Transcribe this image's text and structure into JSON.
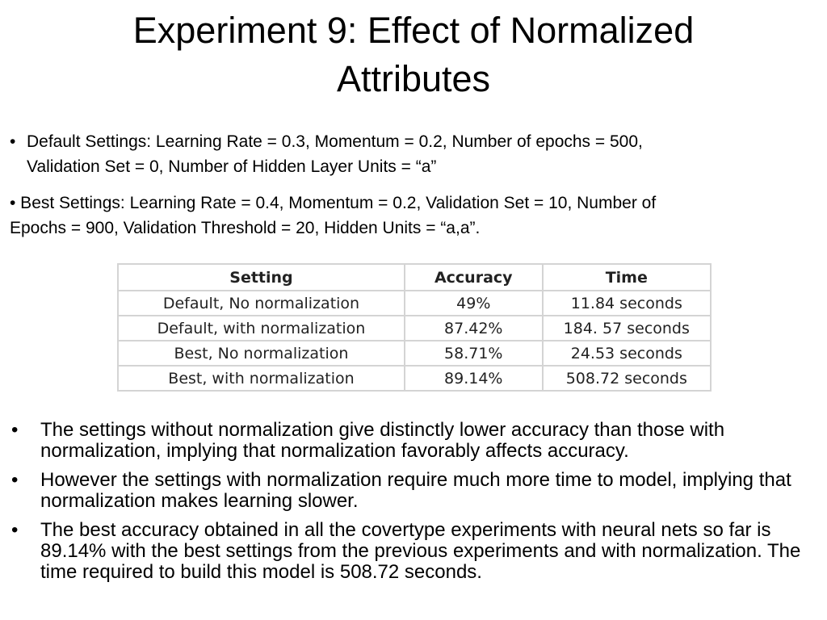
{
  "slide": {
    "title_line1": "Experiment 9: Effect of Normalized",
    "title_line2": "Attributes",
    "bullet_glyph": "•",
    "default_settings": {
      "line1": "Default Settings: Learning Rate = 0.3, Momentum = 0.2, Number of epochs = 500,",
      "line2": "Validation Set = 0, Number of Hidden Layer Units = “a”"
    },
    "best_settings": {
      "line1": "• Best Settings: Learning Rate = 0.4, Momentum = 0.2, Validation Set = 10, Number of",
      "line2": "Epochs = 900, Validation Threshold = 20, Hidden Units = “a,a”."
    },
    "table": {
      "headers": [
        "Setting",
        "Accuracy",
        "Time"
      ],
      "rows": [
        [
          "Default, No normalization",
          "49%",
          "11.84 seconds"
        ],
        [
          "Default, with normalization",
          "87.42%",
          "184. 57 seconds"
        ],
        [
          "Best, No normalization",
          "58.71%",
          "24.53 seconds"
        ],
        [
          "Best, with normalization",
          "89.14%",
          "508.72 seconds"
        ]
      ]
    },
    "observations": [
      "The settings without normalization give distinctly lower accuracy than those with normalization, implying that normalization favorably affects accuracy.",
      "However the settings with normalization require much more time to model, implying that normalization makes learning slower.",
      "The best accuracy obtained in all the covertype experiments with neural nets so far is 89.14% with the best settings from the previous experiments and with normalization. The time required to build this model is 508.72 seconds."
    ]
  }
}
